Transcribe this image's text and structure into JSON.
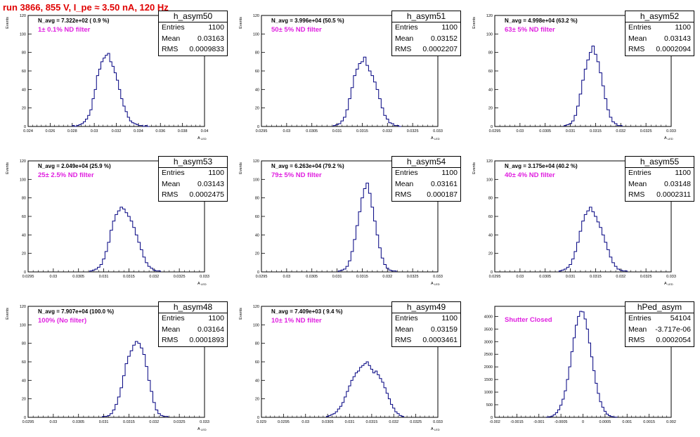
{
  "title": "run 3866,   855 V, I_pe ≈ 3.50 nA, 120 Hz",
  "colors": {
    "title": "#e00000",
    "histogram": "#000080",
    "annotation": "#e020e0",
    "axis": "#000000"
  },
  "chart_data": [
    {
      "type": "histogram",
      "name": "h_asym50",
      "n_avg_label": "N_avg = 7.322e+02 ( 0.9 %)",
      "filter_label": "1± 0.1% ND filter",
      "xlabel": "A_LED",
      "ylabel": "Events",
      "xlim": [
        0.024,
        0.04
      ],
      "ylim": [
        0,
        120
      ],
      "xticks": [
        "0.024",
        "0.026",
        "0.028",
        "0.03",
        "0.032",
        "0.034",
        "0.036",
        "0.038",
        "0.04"
      ],
      "yticks": [
        "0",
        "20",
        "40",
        "60",
        "80",
        "100",
        "120"
      ],
      "stats": [
        {
          "label": "Entries",
          "value": "1100"
        },
        {
          "label": "Mean",
          "value": "0.03163"
        },
        {
          "label": "RMS",
          "value": "0.0009833"
        }
      ],
      "bins_x": [
        0.0281,
        0.0283,
        0.0285,
        0.0287,
        0.0289,
        0.0291,
        0.0293,
        0.0295,
        0.0297,
        0.0299,
        0.0301,
        0.0303,
        0.0305,
        0.0307,
        0.0309,
        0.0311,
        0.0313,
        0.0315,
        0.0317,
        0.0319,
        0.0321,
        0.0323,
        0.0325,
        0.0327,
        0.0329,
        0.0331,
        0.0333,
        0.0335,
        0.0337,
        0.0339,
        0.0341,
        0.0343,
        0.0345,
        0.0347,
        0.0349
      ],
      "counts": [
        1,
        0,
        1,
        2,
        3,
        5,
        8,
        12,
        18,
        30,
        40,
        55,
        62,
        70,
        74,
        77,
        79,
        70,
        65,
        58,
        50,
        40,
        30,
        22,
        16,
        10,
        6,
        4,
        3,
        2,
        1,
        1,
        0,
        1,
        0
      ]
    },
    {
      "type": "histogram",
      "name": "h_asym51",
      "n_avg_label": "N_avg = 3.996e+04 (50.5 %)",
      "filter_label": "50± 5% ND filter",
      "xlabel": "A_LED",
      "ylabel": "Events",
      "xlim": [
        0.0295,
        0.033
      ],
      "ylim": [
        0,
        120
      ],
      "xticks": [
        "0.0295",
        "0.03",
        "0.0305",
        "0.031",
        "0.0315",
        "0.032",
        "0.0325",
        "0.033"
      ],
      "yticks": [
        "0",
        "20",
        "40",
        "60",
        "80",
        "100",
        "120"
      ],
      "stats": [
        {
          "label": "Entries",
          "value": "1100"
        },
        {
          "label": "Mean",
          "value": "0.03152"
        },
        {
          "label": "RMS",
          "value": "0.0002207"
        }
      ],
      "bins_x": [
        0.03095,
        0.031,
        0.03105,
        0.0311,
        0.03115,
        0.0312,
        0.03125,
        0.0313,
        0.03135,
        0.0314,
        0.03145,
        0.0315,
        0.03155,
        0.0316,
        0.03165,
        0.0317,
        0.03175,
        0.0318,
        0.03185,
        0.0319,
        0.03195,
        0.032,
        0.03205,
        0.0321,
        0.03215,
        0.0322,
        0.03225
      ],
      "counts": [
        1,
        2,
        3,
        6,
        10,
        18,
        30,
        42,
        55,
        62,
        68,
        70,
        75,
        66,
        60,
        55,
        48,
        40,
        30,
        20,
        12,
        8,
        4,
        3,
        1,
        1,
        0
      ]
    },
    {
      "type": "histogram",
      "name": "h_asym52",
      "n_avg_label": "N_avg = 4.998e+04 (63.2 %)",
      "filter_label": "63± 5% ND filter",
      "xlabel": "A_LED",
      "ylabel": "Events",
      "xlim": [
        0.0295,
        0.033
      ],
      "ylim": [
        0,
        120
      ],
      "xticks": [
        "0.0295",
        "0.03",
        "0.0305",
        "0.031",
        "0.0315",
        "0.032",
        "0.0325",
        "0.033"
      ],
      "yticks": [
        "0",
        "20",
        "40",
        "60",
        "80",
        "100",
        "120"
      ],
      "stats": [
        {
          "label": "Entries",
          "value": "1100"
        },
        {
          "label": "Mean",
          "value": "0.03143"
        },
        {
          "label": "RMS",
          "value": "0.0002094"
        }
      ],
      "bins_x": [
        0.0309,
        0.03095,
        0.031,
        0.03105,
        0.0311,
        0.03115,
        0.0312,
        0.03125,
        0.0313,
        0.03135,
        0.0314,
        0.03145,
        0.0315,
        0.03155,
        0.0316,
        0.03165,
        0.0317,
        0.03175,
        0.0318,
        0.03185,
        0.0319,
        0.03195,
        0.032
      ],
      "counts": [
        1,
        2,
        3,
        6,
        12,
        22,
        35,
        50,
        62,
        72,
        80,
        87,
        78,
        70,
        58,
        44,
        30,
        18,
        10,
        5,
        3,
        1,
        1
      ]
    },
    {
      "type": "histogram",
      "name": "h_asym53",
      "n_avg_label": "N_avg = 2.049e+04 (25.9 %)",
      "filter_label": "25± 2.5% ND filter",
      "xlabel": "A_LED",
      "ylabel": "Events",
      "xlim": [
        0.0295,
        0.033
      ],
      "ylim": [
        0,
        120
      ],
      "xticks": [
        "0.0295",
        "0.03",
        "0.0305",
        "0.031",
        "0.0315",
        "0.032",
        "0.0325",
        "0.033"
      ],
      "yticks": [
        "0",
        "20",
        "40",
        "60",
        "80",
        "100",
        "120"
      ],
      "stats": [
        {
          "label": "Entries",
          "value": "1100"
        },
        {
          "label": "Mean",
          "value": "0.03143"
        },
        {
          "label": "RMS",
          "value": "0.0002475"
        }
      ],
      "bins_x": [
        0.03075,
        0.0308,
        0.03085,
        0.0309,
        0.03095,
        0.031,
        0.03105,
        0.0311,
        0.03115,
        0.0312,
        0.03125,
        0.0313,
        0.03135,
        0.0314,
        0.03145,
        0.0315,
        0.03155,
        0.0316,
        0.03165,
        0.0317,
        0.03175,
        0.0318,
        0.03185,
        0.0319,
        0.03195,
        0.032,
        0.03205,
        0.0321
      ],
      "counts": [
        1,
        2,
        3,
        5,
        8,
        14,
        22,
        32,
        45,
        55,
        62,
        66,
        70,
        68,
        64,
        60,
        55,
        48,
        40,
        32,
        24,
        16,
        10,
        6,
        4,
        2,
        1,
        1
      ]
    },
    {
      "type": "histogram",
      "name": "h_asym54",
      "n_avg_label": "N_avg = 6.263e+04 (79.2 %)",
      "filter_label": "79± 5% ND filter",
      "xlabel": "A_LED",
      "ylabel": "Events",
      "xlim": [
        0.0295,
        0.033
      ],
      "ylim": [
        0,
        120
      ],
      "xticks": [
        "0.0295",
        "0.03",
        "0.0305",
        "0.031",
        "0.0315",
        "0.032",
        "0.0325",
        "0.033"
      ],
      "yticks": [
        "0",
        "20",
        "40",
        "60",
        "80",
        "100",
        "120"
      ],
      "stats": [
        {
          "label": "Entries",
          "value": "1100"
        },
        {
          "label": "Mean",
          "value": "0.03161"
        },
        {
          "label": "RMS",
          "value": "0.000187"
        }
      ],
      "bins_x": [
        0.03105,
        0.0311,
        0.03115,
        0.0312,
        0.03125,
        0.0313,
        0.03135,
        0.0314,
        0.03145,
        0.0315,
        0.03155,
        0.0316,
        0.03165,
        0.0317,
        0.03175,
        0.0318,
        0.03185,
        0.0319,
        0.03195,
        0.032,
        0.03205,
        0.0321,
        0.03215
      ],
      "counts": [
        1,
        2,
        3,
        6,
        12,
        22,
        35,
        50,
        65,
        80,
        90,
        96,
        85,
        70,
        55,
        40,
        26,
        15,
        8,
        4,
        2,
        1,
        1
      ]
    },
    {
      "type": "histogram",
      "name": "h_asym55",
      "n_avg_label": "N_avg = 3.175e+04 (40.2 %)",
      "filter_label": "40± 4% ND filter",
      "xlabel": "A_LED",
      "ylabel": "Events",
      "xlim": [
        0.0295,
        0.033
      ],
      "ylim": [
        0,
        120
      ],
      "xticks": [
        "0.0295",
        "0.03",
        "0.0305",
        "0.031",
        "0.0315",
        "0.032",
        "0.0325",
        "0.033"
      ],
      "yticks": [
        "0",
        "20",
        "40",
        "60",
        "80",
        "100",
        "120"
      ],
      "stats": [
        {
          "label": "Entries",
          "value": "1100"
        },
        {
          "label": "Mean",
          "value": "0.03148"
        },
        {
          "label": "RMS",
          "value": "0.0002311"
        }
      ],
      "bins_x": [
        0.0308,
        0.03085,
        0.0309,
        0.03095,
        0.031,
        0.03105,
        0.0311,
        0.03115,
        0.0312,
        0.03125,
        0.0313,
        0.03135,
        0.0314,
        0.03145,
        0.0315,
        0.03155,
        0.0316,
        0.03165,
        0.0317,
        0.03175,
        0.0318,
        0.03185,
        0.0319,
        0.03195,
        0.032,
        0.03205,
        0.0321
      ],
      "counts": [
        1,
        2,
        3,
        5,
        8,
        14,
        22,
        32,
        44,
        55,
        62,
        66,
        70,
        65,
        60,
        54,
        48,
        40,
        32,
        24,
        16,
        10,
        6,
        3,
        2,
        1,
        1
      ]
    },
    {
      "type": "histogram",
      "name": "h_asym48",
      "n_avg_label": "N_avg = 7.907e+04 (100.0 %)",
      "filter_label": "100% (No filter)",
      "xlabel": "A_LED",
      "ylabel": "Events",
      "xlim": [
        0.0295,
        0.033
      ],
      "ylim": [
        0,
        120
      ],
      "xticks": [
        "0.0295",
        "0.03",
        "0.0305",
        "0.031",
        "0.0315",
        "0.032",
        "0.0325",
        "0.033"
      ],
      "yticks": [
        "0",
        "20",
        "40",
        "60",
        "80",
        "100",
        "120"
      ],
      "stats": [
        {
          "label": "Entries",
          "value": "1100"
        },
        {
          "label": "Mean",
          "value": "0.03164"
        },
        {
          "label": "RMS",
          "value": "0.0001893"
        }
      ],
      "bins_x": [
        0.031,
        0.03105,
        0.0311,
        0.03115,
        0.0312,
        0.03125,
        0.0313,
        0.03135,
        0.0314,
        0.03145,
        0.0315,
        0.03155,
        0.0316,
        0.03165,
        0.0317,
        0.03175,
        0.0318,
        0.03185,
        0.0319,
        0.03195,
        0.032,
        0.03205,
        0.0321,
        0.03215,
        0.0322,
        0.03225
      ],
      "counts": [
        1,
        1,
        2,
        4,
        8,
        14,
        22,
        32,
        45,
        58,
        66,
        72,
        78,
        82,
        80,
        75,
        68,
        55,
        40,
        28,
        16,
        8,
        4,
        2,
        1,
        1
      ]
    },
    {
      "type": "histogram",
      "name": "h_asym49",
      "n_avg_label": "N_avg = 7.409e+03 ( 9.4 %)",
      "filter_label": "10± 1% ND filter",
      "xlabel": "A_LED",
      "ylabel": "Events",
      "xlim": [
        0.029,
        0.033
      ],
      "ylim": [
        0,
        120
      ],
      "xticks": [
        "0.029",
        "0.0295",
        "0.03",
        "0.0305",
        "0.031",
        "0.0315",
        "0.032",
        "0.0325",
        "0.033"
      ],
      "yticks": [
        "0",
        "20",
        "40",
        "60",
        "80",
        "100",
        "120"
      ],
      "stats": [
        {
          "label": "Entries",
          "value": "1100"
        },
        {
          "label": "Mean",
          "value": "0.03159"
        },
        {
          "label": "RMS",
          "value": "0.0003461"
        }
      ],
      "bins_x": [
        0.0305,
        0.03055,
        0.0306,
        0.03065,
        0.0307,
        0.03075,
        0.0308,
        0.03085,
        0.0309,
        0.03095,
        0.031,
        0.03105,
        0.0311,
        0.03115,
        0.0312,
        0.03125,
        0.0313,
        0.03135,
        0.0314,
        0.03145,
        0.0315,
        0.03155,
        0.0316,
        0.03165,
        0.0317,
        0.03175,
        0.0318,
        0.03185,
        0.0319,
        0.03195,
        0.032,
        0.03205,
        0.0321,
        0.03215,
        0.0322
      ],
      "counts": [
        1,
        2,
        3,
        4,
        6,
        9,
        12,
        16,
        22,
        28,
        34,
        40,
        44,
        48,
        50,
        54,
        56,
        58,
        60,
        56,
        52,
        48,
        50,
        46,
        42,
        38,
        32,
        26,
        20,
        14,
        10,
        6,
        4,
        2,
        1
      ]
    },
    {
      "type": "histogram",
      "name": "hPed_asym",
      "n_avg_label": "",
      "filter_label": "Shutter Closed",
      "xlabel": "",
      "ylabel": "",
      "xlim": [
        -0.002,
        0.002
      ],
      "ylim": [
        0,
        4400
      ],
      "xticks": [
        "-0.002",
        "-0.0015",
        "-0.001",
        "-0.0005",
        "0",
        "0.0005",
        "0.001",
        "0.0015",
        "0.002"
      ],
      "yticks": [
        "0",
        "500",
        "1000",
        "1500",
        "2000",
        "2500",
        "3000",
        "3500",
        "4000"
      ],
      "stats": [
        {
          "label": "Entries",
          "value": "54104"
        },
        {
          "label": "Mean",
          "value": "-3.717e-06"
        },
        {
          "label": "RMS",
          "value": "0.0002054"
        }
      ],
      "bins_x": [
        -0.0008,
        -0.00075,
        -0.0007,
        -0.00065,
        -0.0006,
        -0.00055,
        -0.0005,
        -0.00045,
        -0.0004,
        -0.00035,
        -0.0003,
        -0.00025,
        -0.0002,
        -0.00015,
        -0.0001,
        -5e-05,
        0,
        5e-05,
        0.0001,
        0.00015,
        0.0002,
        0.00025,
        0.0003,
        0.00035,
        0.0004,
        0.00045,
        0.0005,
        0.00055,
        0.0006,
        0.00065,
        0.0007,
        0.00075
      ],
      "counts": [
        10,
        25,
        50,
        100,
        180,
        300,
        480,
        720,
        1050,
        1500,
        2000,
        2600,
        3150,
        3650,
        4000,
        4200,
        4180,
        3900,
        3500,
        2950,
        2400,
        1850,
        1350,
        950,
        620,
        400,
        240,
        130,
        70,
        35,
        15,
        8
      ]
    }
  ]
}
